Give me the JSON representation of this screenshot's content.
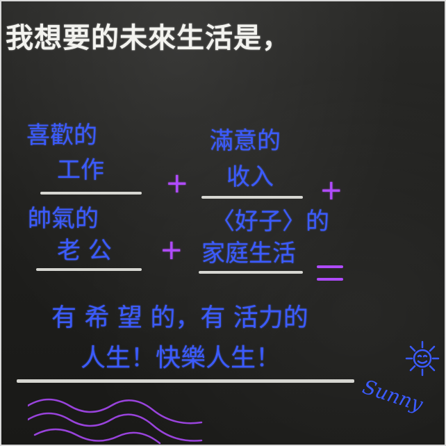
{
  "stencil_heading": "我想要的未來生活是，",
  "wishes": {
    "job_line1": "喜歡的",
    "job_line2": "工作",
    "income_line1": "滿意的",
    "income_line2": "收入",
    "husband_line1": "帥氣的",
    "husband_line2": "老 公",
    "family_line1": "〈好子〉的",
    "family_line2": "家庭生活"
  },
  "plus_sign": "+",
  "conclusion_line1": "有 希 望 的，有 活力的",
  "conclusion_line2": "人生！快樂人生！",
  "signature": "Sunny",
  "colors": {
    "chalk_blue": "#3b5bff",
    "chalk_purple": "#b04bff",
    "stencil_white": "#f3f3ef",
    "board": "#1f1f1d"
  },
  "icons": [
    "smiling-sun-icon",
    "wave-doodle-icon"
  ]
}
